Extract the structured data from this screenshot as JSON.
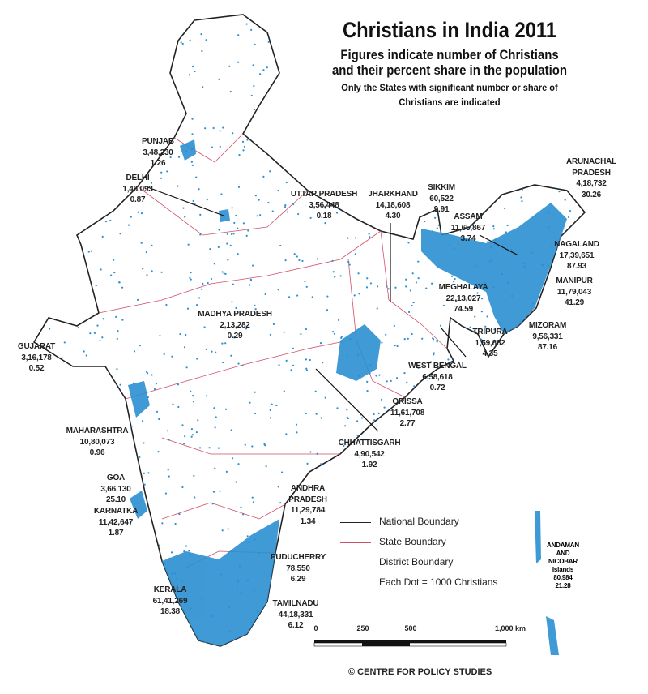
{
  "title": "Christians in India 2011",
  "subtitle_lines": [
    "Figures indicate number of Christians",
    "and their percent share in the population"
  ],
  "note_lines": [
    "Only the States with significant number or share of",
    "Christians are indicated"
  ],
  "colors": {
    "dots": "#2b8fd0",
    "national_boundary": "#222222",
    "state_boundary": "#d0506a",
    "district_boundary": "#9aa5b8"
  },
  "states": [
    {
      "name": "PUNJAB",
      "count": "3,48,230",
      "share": "1.26"
    },
    {
      "name": "DELHI",
      "count": "1,46,093",
      "share": "0.87"
    },
    {
      "name": "UTTAR PRADESH",
      "count": "3,56,448",
      "share": "0.18"
    },
    {
      "name": "JHARKHAND",
      "count": "14,18,608",
      "share": "4.30"
    },
    {
      "name": "SIKKIM",
      "count": "60,522",
      "share": "9.91"
    },
    {
      "name": "ASSAM",
      "count": "11,65,867",
      "share": "3.74"
    },
    {
      "name": "ARUNACHAL PRADESH",
      "count": "4,18,732",
      "share": "30.26"
    },
    {
      "name": "NAGALAND",
      "count": "17,39,651",
      "share": "87.93"
    },
    {
      "name": "MANIPUR",
      "count": "11,79,043",
      "share": "41.29"
    },
    {
      "name": "MEGHALAYA",
      "count": "22,13,027",
      "share": "74.59"
    },
    {
      "name": "MIZORAM",
      "count": "9,56,331",
      "share": "87.16"
    },
    {
      "name": "TRIPURA",
      "count": "1,59,882",
      "share": "4.35"
    },
    {
      "name": "WEST BENGAL",
      "count": "6,58,618",
      "share": "0.72"
    },
    {
      "name": "MADHYA PRADESH",
      "count": "2,13,282",
      "share": "0.29"
    },
    {
      "name": "GUJARAT",
      "count": "3,16,178",
      "share": "0.52"
    },
    {
      "name": "ORISSA",
      "count": "11,61,708",
      "share": "2.77"
    },
    {
      "name": "CHHATTISGARH",
      "count": "4,90,542",
      "share": "1.92"
    },
    {
      "name": "MAHARASHTRA",
      "count": "10,80,073",
      "share": "0.96"
    },
    {
      "name": "GOA",
      "count": "3,66,130",
      "share": "25.10"
    },
    {
      "name": "KARNATKA",
      "count": "11,42,647",
      "share": "1.87"
    },
    {
      "name": "ANDHRA PRADESH",
      "count": "11,29,784",
      "share": "1.34"
    },
    {
      "name": "PUDUCHERRY",
      "count": "78,550",
      "share": "6.29"
    },
    {
      "name": "KERALA",
      "count": "61,41,269",
      "share": "18.38"
    },
    {
      "name": "TAMILNADU",
      "count": "44,18,331",
      "share": "6.12"
    },
    {
      "name": "ANDAMAN AND NICOBAR Islands",
      "count": "80,984",
      "share": "21.28"
    }
  ],
  "legend": {
    "national": "National Boundary",
    "state": "State Boundary",
    "district": "District Boundary",
    "dot": "Each Dot = 1000 Christians"
  },
  "scale": {
    "ticks": [
      "0",
      "250",
      "500",
      "1,000 km"
    ]
  },
  "credit": "© CENTRE FOR POLICY STUDIES"
}
